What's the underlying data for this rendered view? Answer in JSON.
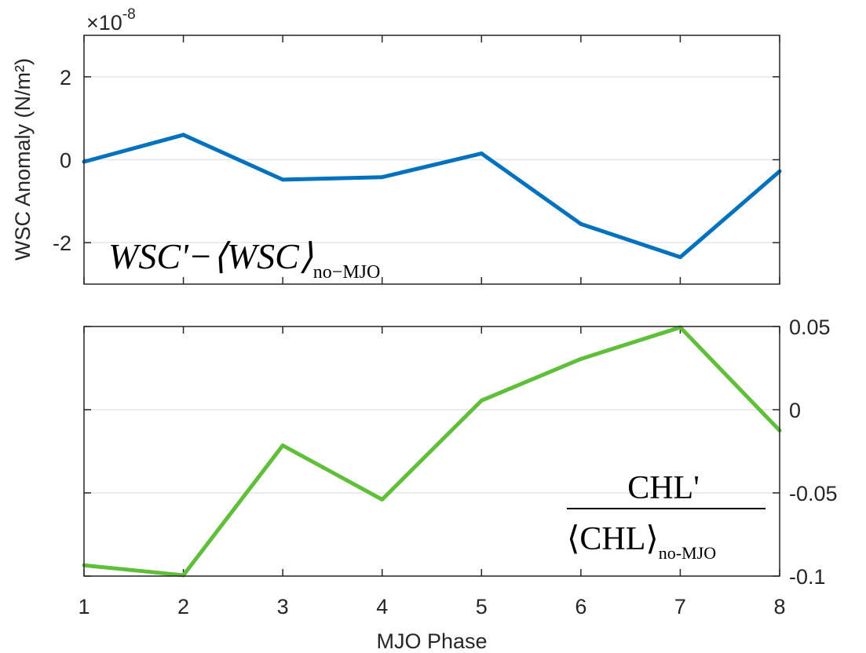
{
  "chart_data": [
    {
      "type": "line",
      "x": [
        1,
        2,
        3,
        4,
        5,
        6,
        7,
        8
      ],
      "xlim": [
        1,
        8
      ],
      "x_ticks": [
        "1",
        "2",
        "3",
        "4",
        "5",
        "6",
        "7",
        "8"
      ],
      "show_x_ticklabels": false,
      "ylabel": "WSC Anomaly (N/m²)",
      "ylim": [
        -3,
        3
      ],
      "y_ticks": [
        2,
        0,
        -2
      ],
      "y_tick_labels": [
        "2",
        "0",
        "-2"
      ],
      "y_axis_side": "left",
      "exponent_label": {
        "base": "×10",
        "power": "-8"
      },
      "grid": "horizontal",
      "series": [
        {
          "values": [
            -0.05,
            0.6,
            -0.48,
            -0.42,
            0.15,
            -1.55,
            -2.35,
            -0.28
          ],
          "color": "#0072BD"
        }
      ],
      "annotation": {
        "main": "WSC'−⟨WSC⟩",
        "subscript": "no−MJO",
        "position": "bottom-left"
      }
    },
    {
      "type": "line",
      "x": [
        1,
        2,
        3,
        4,
        5,
        6,
        7,
        8
      ],
      "xlim": [
        1,
        8
      ],
      "x_ticks": [
        "1",
        "2",
        "3",
        "4",
        "5",
        "6",
        "7",
        "8"
      ],
      "show_x_ticklabels": true,
      "xlabel": "MJO Phase",
      "ylim": [
        -0.1,
        0.05
      ],
      "y_ticks": [
        0.05,
        0,
        -0.05,
        -0.1
      ],
      "y_tick_labels": [
        "0.05",
        "0",
        "-0.05",
        "-0.1"
      ],
      "y_axis_side": "right",
      "grid": "horizontal",
      "series": [
        {
          "values": [
            -0.0935,
            -0.0995,
            -0.0215,
            -0.054,
            0.0055,
            0.0305,
            0.0495,
            -0.0125
          ],
          "color": "#5FBF3A"
        }
      ],
      "annotation": {
        "numerator": "CHL'",
        "denominator": "⟨CHL⟩",
        "subscript": "no-MJO",
        "position": "bottom-right"
      }
    }
  ]
}
